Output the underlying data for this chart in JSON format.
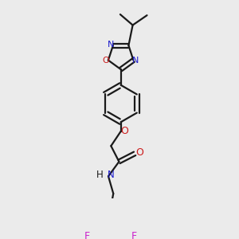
{
  "bg_color": "#ebebeb",
  "bond_color": "#1a1a1a",
  "N_color": "#1c1ccc",
  "O_color": "#cc1a1a",
  "F_color": "#cc22cc",
  "lw": 1.6,
  "figsize": [
    3.0,
    3.0
  ],
  "dpi": 100,
  "xlim": [
    0,
    300
  ],
  "ylim": [
    0,
    300
  ]
}
